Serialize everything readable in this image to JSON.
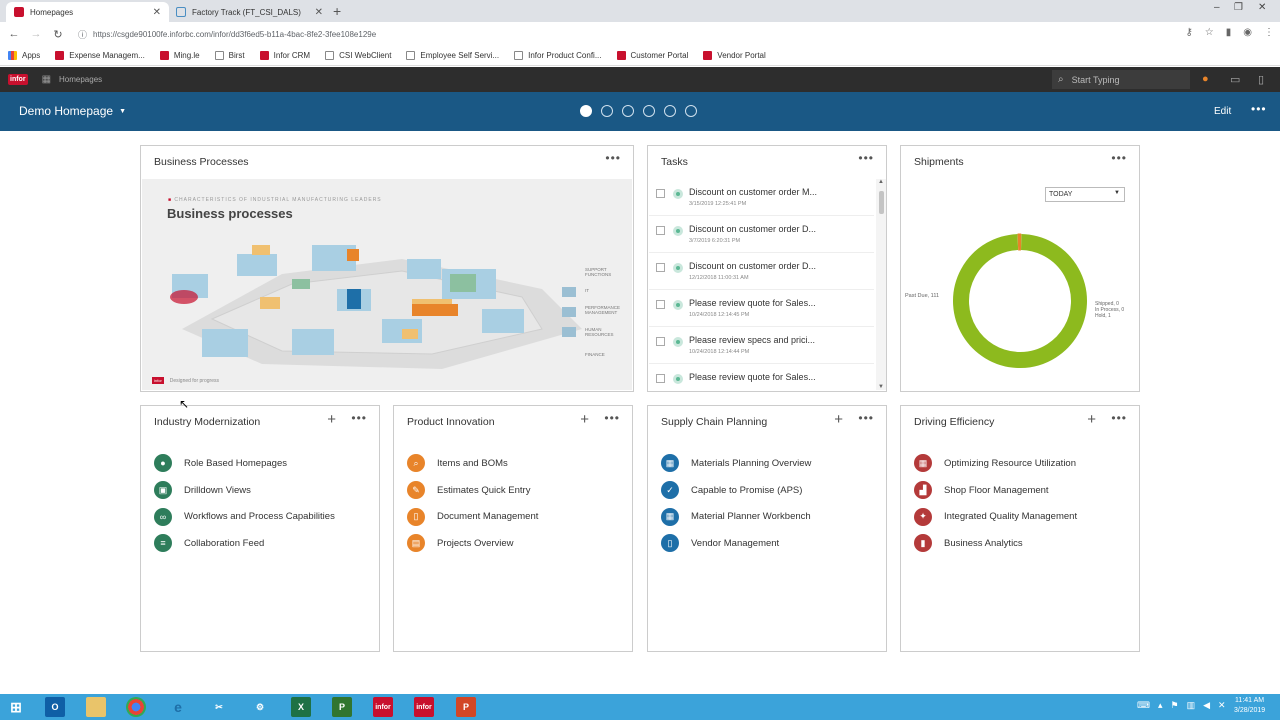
{
  "browser": {
    "tabs": [
      {
        "label": "Homepages",
        "active": true
      },
      {
        "label": "Factory Track (FT_CSI_DALS)",
        "active": false
      }
    ],
    "url": "https://csgde90100fe.inforbc.com/infor/dd3f6ed5-b11a-4bac-8fe2-3fee108e129e",
    "bookmarks": [
      {
        "label": "Apps",
        "icon": "apps-icon"
      },
      {
        "label": "Expense Managem...",
        "icon": "infor-icon"
      },
      {
        "label": "Ming.le",
        "icon": "infor-icon"
      },
      {
        "label": "Birst",
        "icon": "page-icon"
      },
      {
        "label": "Infor CRM",
        "icon": "infor-icon"
      },
      {
        "label": "CSI WebClient",
        "icon": "page-icon"
      },
      {
        "label": "Employee Self Servi...",
        "icon": "page-icon"
      },
      {
        "label": "Infor Product Confi...",
        "icon": "page-icon"
      },
      {
        "label": "Customer Portal",
        "icon": "infor-icon"
      },
      {
        "label": "Vendor Portal",
        "icon": "infor-icon"
      }
    ]
  },
  "header": {
    "logo": "infor",
    "section": "Homepages",
    "search_placeholder": "Start Typing"
  },
  "homebar": {
    "title": "Demo Homepage",
    "page_count": 6,
    "active_page": 1,
    "edit_label": "Edit"
  },
  "widgets": {
    "business_processes": {
      "title": "Business Processes",
      "caption": "CHARACTERISTICS OF INDUSTRIAL MANUFACTURING LEADERS",
      "heading": "Business processes",
      "footer": "Designed for progress"
    },
    "tasks": {
      "title": "Tasks",
      "items": [
        {
          "title": "Discount on customer order M...",
          "date": "3/15/2019 12:25:41 PM"
        },
        {
          "title": "Discount on customer order D...",
          "date": "3/7/2019 6:20:31 PM"
        },
        {
          "title": "Discount on customer order D...",
          "date": "12/12/2018 11:00:31 AM"
        },
        {
          "title": "Please review quote for Sales...",
          "date": "10/24/2018 12:14:45 PM"
        },
        {
          "title": "Please review specs and prici...",
          "date": "10/24/2018 12:14:44 PM"
        },
        {
          "title": "Please review quote for Sales...",
          "date": ""
        }
      ]
    },
    "shipments": {
      "title": "Shipments",
      "filter": "TODAY",
      "label_left": "Past Due, 111",
      "label_right": [
        "Shipped, 0",
        "In Process, 0",
        "Hold, 1"
      ]
    },
    "industry_modernization": {
      "title": "Industry Modernization",
      "color": "#2e7d5b",
      "links": [
        {
          "label": "Role Based Homepages",
          "icon": "user-icon"
        },
        {
          "label": "Drilldown Views",
          "icon": "drilldown-icon"
        },
        {
          "label": "Workflows and Process Capabilities",
          "icon": "link-icon"
        },
        {
          "label": "Collaboration Feed",
          "icon": "feed-icon"
        }
      ]
    },
    "product_innovation": {
      "title": "Product Innovation",
      "color": "#e8842a",
      "links": [
        {
          "label": "Items and BOMs",
          "icon": "search-icon"
        },
        {
          "label": "Estimates Quick Entry",
          "icon": "pencil-icon"
        },
        {
          "label": "Document Management",
          "icon": "document-icon"
        },
        {
          "label": "Projects Overview",
          "icon": "clipboard-icon"
        }
      ]
    },
    "supply_chain_planning": {
      "title": "Supply Chain Planning",
      "color": "#1e6fa8",
      "links": [
        {
          "label": "Materials Planning Overview",
          "icon": "table-icon"
        },
        {
          "label": "Capable to Promise (APS)",
          "icon": "check-icon"
        },
        {
          "label": "Material Planner Workbench",
          "icon": "table-icon"
        },
        {
          "label": "Vendor Management",
          "icon": "document-icon"
        }
      ]
    },
    "driving_efficiency": {
      "title": "Driving Efficiency",
      "color": "#b43a3a",
      "links": [
        {
          "label": "Optimizing Resource Utilization",
          "icon": "table-icon"
        },
        {
          "label": "Shop Floor Management",
          "icon": "factory-icon"
        },
        {
          "label": "Integrated Quality Management",
          "icon": "wrench-icon"
        },
        {
          "label": "Business Analytics",
          "icon": "bar-chart-icon"
        }
      ]
    }
  },
  "chart_data": {
    "type": "pie",
    "categories": [
      "Past Due",
      "Shipped",
      "In Process",
      "Hold"
    ],
    "values": [
      111,
      0,
      0,
      1
    ],
    "colors": [
      "#8dba1e",
      "#cfcfcf",
      "#f6c356",
      "#e8842a"
    ],
    "donut": true
  },
  "taskbar": {
    "time": "11:41 AM",
    "date": "3/28/2019"
  }
}
